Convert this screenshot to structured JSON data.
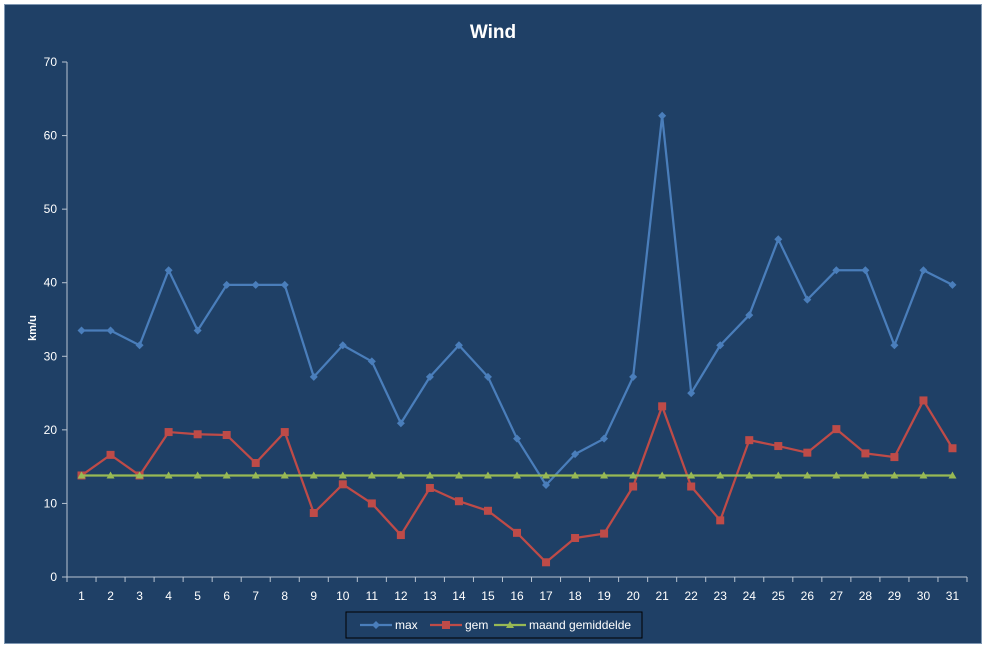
{
  "chart_data": {
    "type": "line",
    "title": "Wind",
    "xlabel": "",
    "ylabel": "km/u",
    "ylim": [
      0,
      70
    ],
    "yticks": [
      0,
      10,
      20,
      30,
      40,
      50,
      60,
      70
    ],
    "grid": false,
    "legend_position": "bottom",
    "background": "#1f4066",
    "categories": [
      "1",
      "2",
      "3",
      "4",
      "5",
      "6",
      "7",
      "8",
      "9",
      "10",
      "11",
      "12",
      "13",
      "14",
      "15",
      "16",
      "17",
      "18",
      "19",
      "20",
      "21",
      "22",
      "23",
      "24",
      "25",
      "26",
      "27",
      "28",
      "29",
      "30",
      "31"
    ],
    "series": [
      {
        "name": "max",
        "color": "#4a7ebb",
        "marker": "diamond",
        "values": [
          33.5,
          33.5,
          31.5,
          41.7,
          33.5,
          39.7,
          39.7,
          39.7,
          27.2,
          31.5,
          29.3,
          20.9,
          27.2,
          31.5,
          27.2,
          18.8,
          12.5,
          16.7,
          18.8,
          27.2,
          62.7,
          25.0,
          31.5,
          35.6,
          45.9,
          37.7,
          41.7,
          41.7,
          31.5,
          41.7,
          39.7
        ]
      },
      {
        "name": "gem",
        "color": "#be4b48",
        "marker": "square",
        "values": [
          13.8,
          16.6,
          13.8,
          19.7,
          19.4,
          19.3,
          15.5,
          19.7,
          8.7,
          12.6,
          10.0,
          5.7,
          12.1,
          10.3,
          9.0,
          6.0,
          2.0,
          5.3,
          5.9,
          12.3,
          23.2,
          12.3,
          7.7,
          18.6,
          17.8,
          16.9,
          20.1,
          16.8,
          16.3,
          24.0,
          17.5
        ]
      },
      {
        "name": "maand gemiddelde",
        "color": "#98b954",
        "marker": "triangle",
        "values": [
          13.8,
          13.8,
          13.8,
          13.8,
          13.8,
          13.8,
          13.8,
          13.8,
          13.8,
          13.8,
          13.8,
          13.8,
          13.8,
          13.8,
          13.8,
          13.8,
          13.8,
          13.8,
          13.8,
          13.8,
          13.8,
          13.8,
          13.8,
          13.8,
          13.8,
          13.8,
          13.8,
          13.8,
          13.8,
          13.8,
          13.8
        ]
      }
    ]
  }
}
